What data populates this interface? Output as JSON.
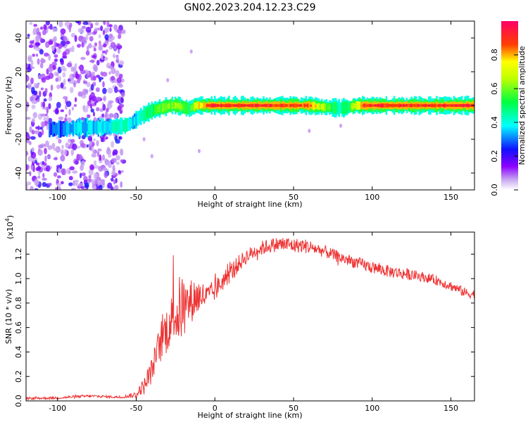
{
  "title": "GN02.2023.204.12.23.C29",
  "chart_data": [
    {
      "type": "heatmap",
      "xlabel": "Height of straight line (km)",
      "ylabel": "Frequency (Hz)",
      "xlim": [
        -120,
        165
      ],
      "ylim": [
        -50,
        50
      ],
      "x_ticks": [
        -100,
        -50,
        0,
        50,
        100,
        150
      ],
      "y_ticks": [
        -40,
        -20,
        0,
        20,
        40
      ],
      "colorbar": {
        "label": "Normalized spectral amplitude",
        "range": [
          0.0,
          1.0
        ],
        "ticks": [
          0.0,
          0.2,
          0.4,
          0.6,
          0.8
        ],
        "tick_labels": [
          "0.0",
          "0.2",
          "0.4",
          "0.6",
          "0.8"
        ],
        "colors": [
          "#ffffff",
          "#8b00ff",
          "#0000ff",
          "#00ffff",
          "#00ff00",
          "#ffff00",
          "#ff0000",
          "#ff0066"
        ]
      },
      "ridge": {
        "x": [
          -105,
          -95,
          -85,
          -75,
          -65,
          -57,
          -52,
          -48,
          -44,
          -40,
          -36,
          -32,
          -28,
          -24,
          -20,
          -16,
          -12,
          -8,
          -4,
          0,
          10,
          20,
          40,
          60,
          70,
          80,
          85,
          90,
          95,
          100,
          120,
          140,
          160,
          165
        ],
        "frequency": [
          -14,
          -14,
          -13,
          -13,
          -12.5,
          -12,
          -10,
          -7,
          -5,
          -3,
          -2,
          -1,
          0,
          0,
          -1,
          -2,
          0,
          0,
          0,
          0,
          0,
          0,
          0,
          0,
          -1,
          -1.5,
          -1,
          0,
          0,
          0,
          0,
          0,
          0,
          0
        ],
        "amplitude": [
          0.25,
          0.3,
          0.35,
          0.35,
          0.4,
          0.45,
          0.35,
          0.4,
          0.45,
          0.5,
          0.55,
          0.6,
          0.6,
          0.6,
          0.55,
          0.5,
          0.7,
          0.8,
          0.85,
          0.9,
          0.9,
          0.9,
          0.9,
          0.85,
          0.6,
          0.45,
          0.5,
          0.7,
          0.9,
          0.9,
          0.9,
          0.9,
          0.9,
          0.9
        ]
      },
      "noise_region": {
        "x_range": [
          -120,
          -58
        ],
        "frequency_range": [
          -50,
          50
        ],
        "amplitude": [
          0.05,
          0.25
        ]
      }
    },
    {
      "type": "line",
      "xlabel": "Height of straight line (km)",
      "ylabel": "SNR (10 * v/v)",
      "y_multiplier_label": "(x10",
      "y_multiplier_exponent": "4",
      "y_multiplier_close": ")",
      "xlim": [
        -120,
        165
      ],
      "ylim": [
        0,
        1.38
      ],
      "x_ticks": [
        -100,
        -50,
        0,
        50,
        100,
        150
      ],
      "y_ticks": [
        0.0,
        0.2,
        0.4,
        0.6,
        0.8,
        1.0,
        1.2
      ],
      "y_tick_labels": [
        "0.0",
        "0.2",
        "0.4",
        "0.6",
        "0.8",
        "1.0",
        "1.2"
      ],
      "color": "#ee3333",
      "series": [
        {
          "x": [
            -120,
            -100,
            -80,
            -70,
            -60,
            -55,
            -50,
            -47,
            -45,
            -42,
            -40,
            -38,
            -36,
            -34,
            -32,
            -30,
            -28,
            -26,
            -24,
            -22,
            -20,
            -18,
            -15,
            -12,
            -10,
            -8,
            -5,
            0,
            5,
            10,
            15,
            20,
            25,
            30,
            35,
            40,
            45,
            50,
            55,
            60,
            65,
            70,
            80,
            90,
            100,
            110,
            120,
            130,
            140,
            150,
            160,
            165
          ],
          "values": [
            0.02,
            0.025,
            0.04,
            0.035,
            0.03,
            0.04,
            0.05,
            0.1,
            0.12,
            0.2,
            0.25,
            0.35,
            0.42,
            0.5,
            0.55,
            0.6,
            0.65,
            0.72,
            0.7,
            0.75,
            0.8,
            0.78,
            0.82,
            0.85,
            0.85,
            0.86,
            0.85,
            0.9,
            0.98,
            1.05,
            1.12,
            1.18,
            1.22,
            1.25,
            1.27,
            1.28,
            1.28,
            1.27,
            1.27,
            1.26,
            1.24,
            1.22,
            1.17,
            1.13,
            1.09,
            1.06,
            1.04,
            1.02,
            0.99,
            0.94,
            0.88,
            0.87
          ],
          "noise_amplitude": [
            0.01,
            0.01,
            0.012,
            0.01,
            0.01,
            0.015,
            0.03,
            0.05,
            0.07,
            0.1,
            0.1,
            0.12,
            0.15,
            0.17,
            0.2,
            0.2,
            0.2,
            0.22,
            0.25,
            0.3,
            0.25,
            0.2,
            0.18,
            0.17,
            0.15,
            0.12,
            0.1,
            0.09,
            0.08,
            0.08,
            0.07,
            0.06,
            0.06,
            0.06,
            0.06,
            0.06,
            0.07,
            0.06,
            0.06,
            0.06,
            0.05,
            0.05,
            0.05,
            0.05,
            0.05,
            0.05,
            0.05,
            0.04,
            0.04,
            0.04,
            0.04,
            0.04
          ]
        }
      ]
    }
  ]
}
